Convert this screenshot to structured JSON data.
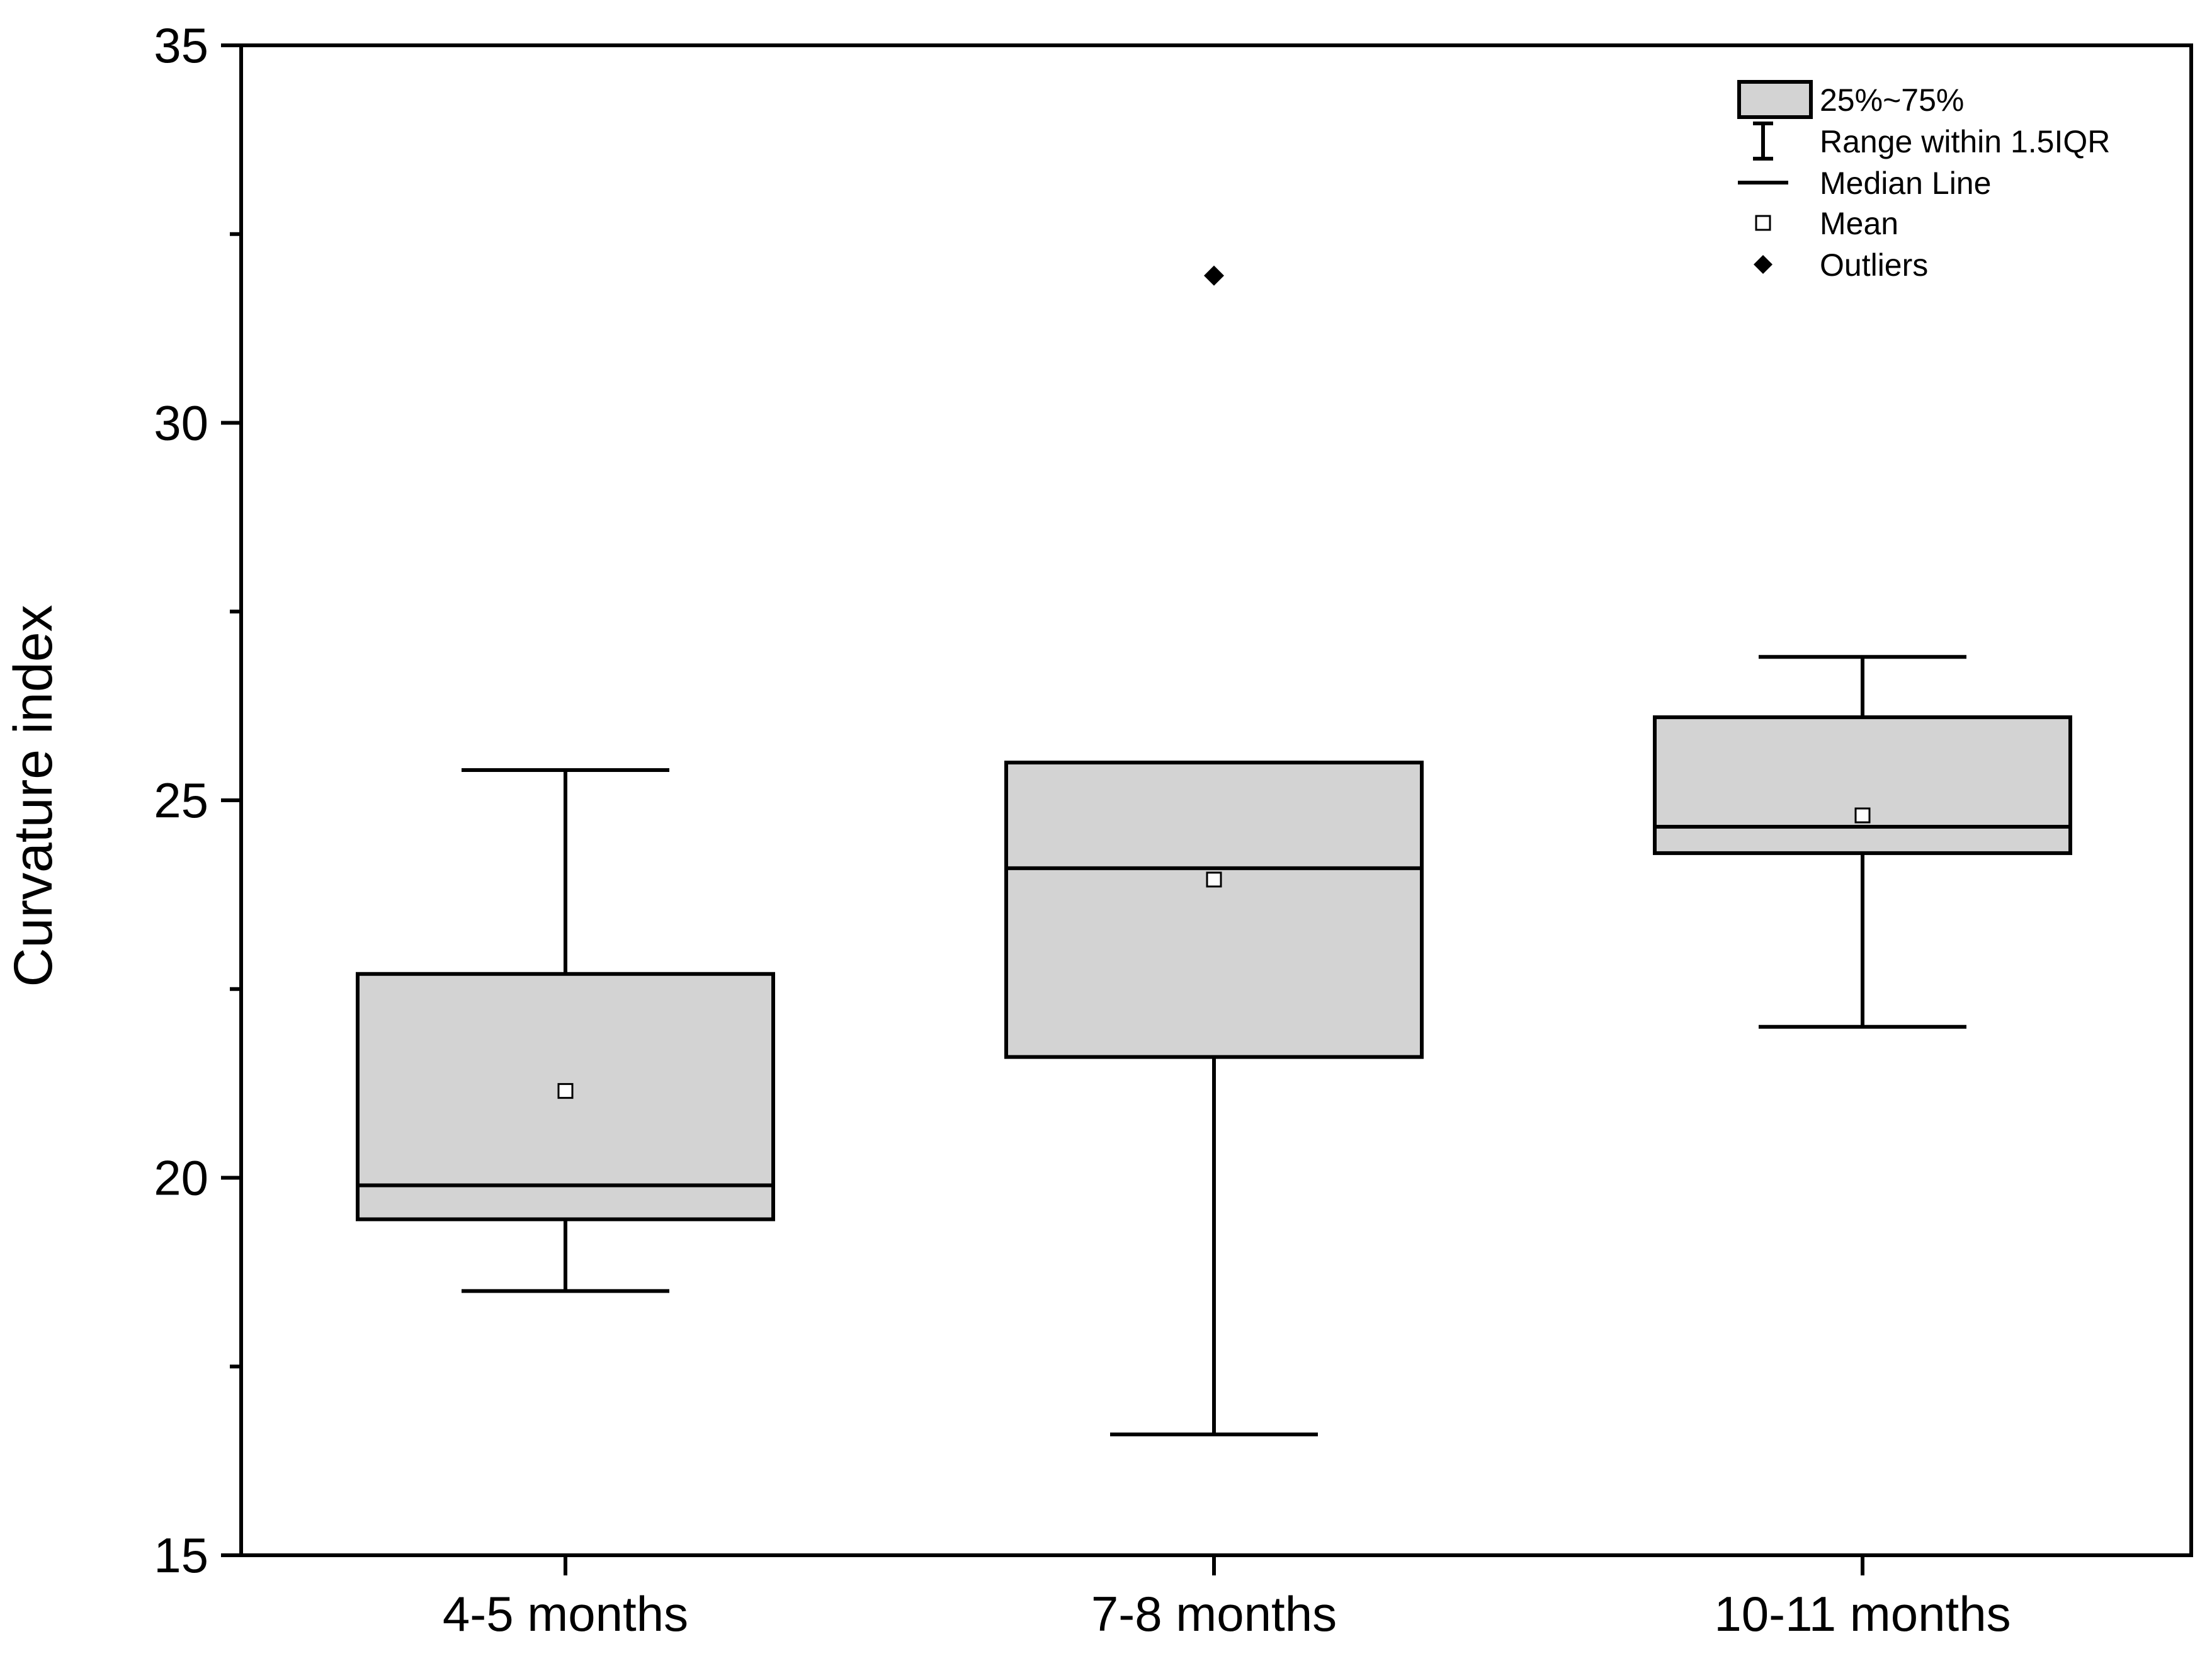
{
  "chart_data": {
    "type": "boxplot",
    "title": "",
    "xlabel": "",
    "ylabel": "Curvature index",
    "ylim": [
      15,
      35
    ],
    "yticks": [
      15,
      20,
      25,
      30,
      35
    ],
    "y_minor_ticks": [
      17.5,
      22.5,
      27.5,
      32.5
    ],
    "categories": [
      "4-5 months",
      "7-8 months",
      "10-11 months"
    ],
    "boxes": [
      {
        "category": "4-5 months",
        "whisker_low": 18.5,
        "q1": 19.45,
        "median": 19.9,
        "q3": 22.7,
        "whisker_high": 25.4,
        "mean": 21.15,
        "outliers": []
      },
      {
        "category": "7-8 months",
        "whisker_low": 16.6,
        "q1": 21.6,
        "median": 24.1,
        "q3": 25.5,
        "whisker_high": 25.5,
        "mean": 23.95,
        "outliers": [
          31.95
        ]
      },
      {
        "category": "10-11 months",
        "whisker_low": 22.0,
        "q1": 24.3,
        "median": 24.65,
        "q3": 26.1,
        "whisker_high": 26.9,
        "mean": 24.8,
        "outliers": []
      }
    ],
    "legend": {
      "position": "top-right",
      "items": [
        {
          "key": "box",
          "label": "25%~75%"
        },
        {
          "key": "whisker",
          "label": "Range within 1.5IQR"
        },
        {
          "key": "median",
          "label": "Median Line"
        },
        {
          "key": "mean",
          "label": "Mean"
        },
        {
          "key": "outlier",
          "label": "Outliers"
        }
      ]
    },
    "colors": {
      "box_fill": "#d3d3d3",
      "stroke": "#000000",
      "mean_fill": "#ffffff",
      "outlier_fill": "#000000"
    },
    "grid": false
  }
}
